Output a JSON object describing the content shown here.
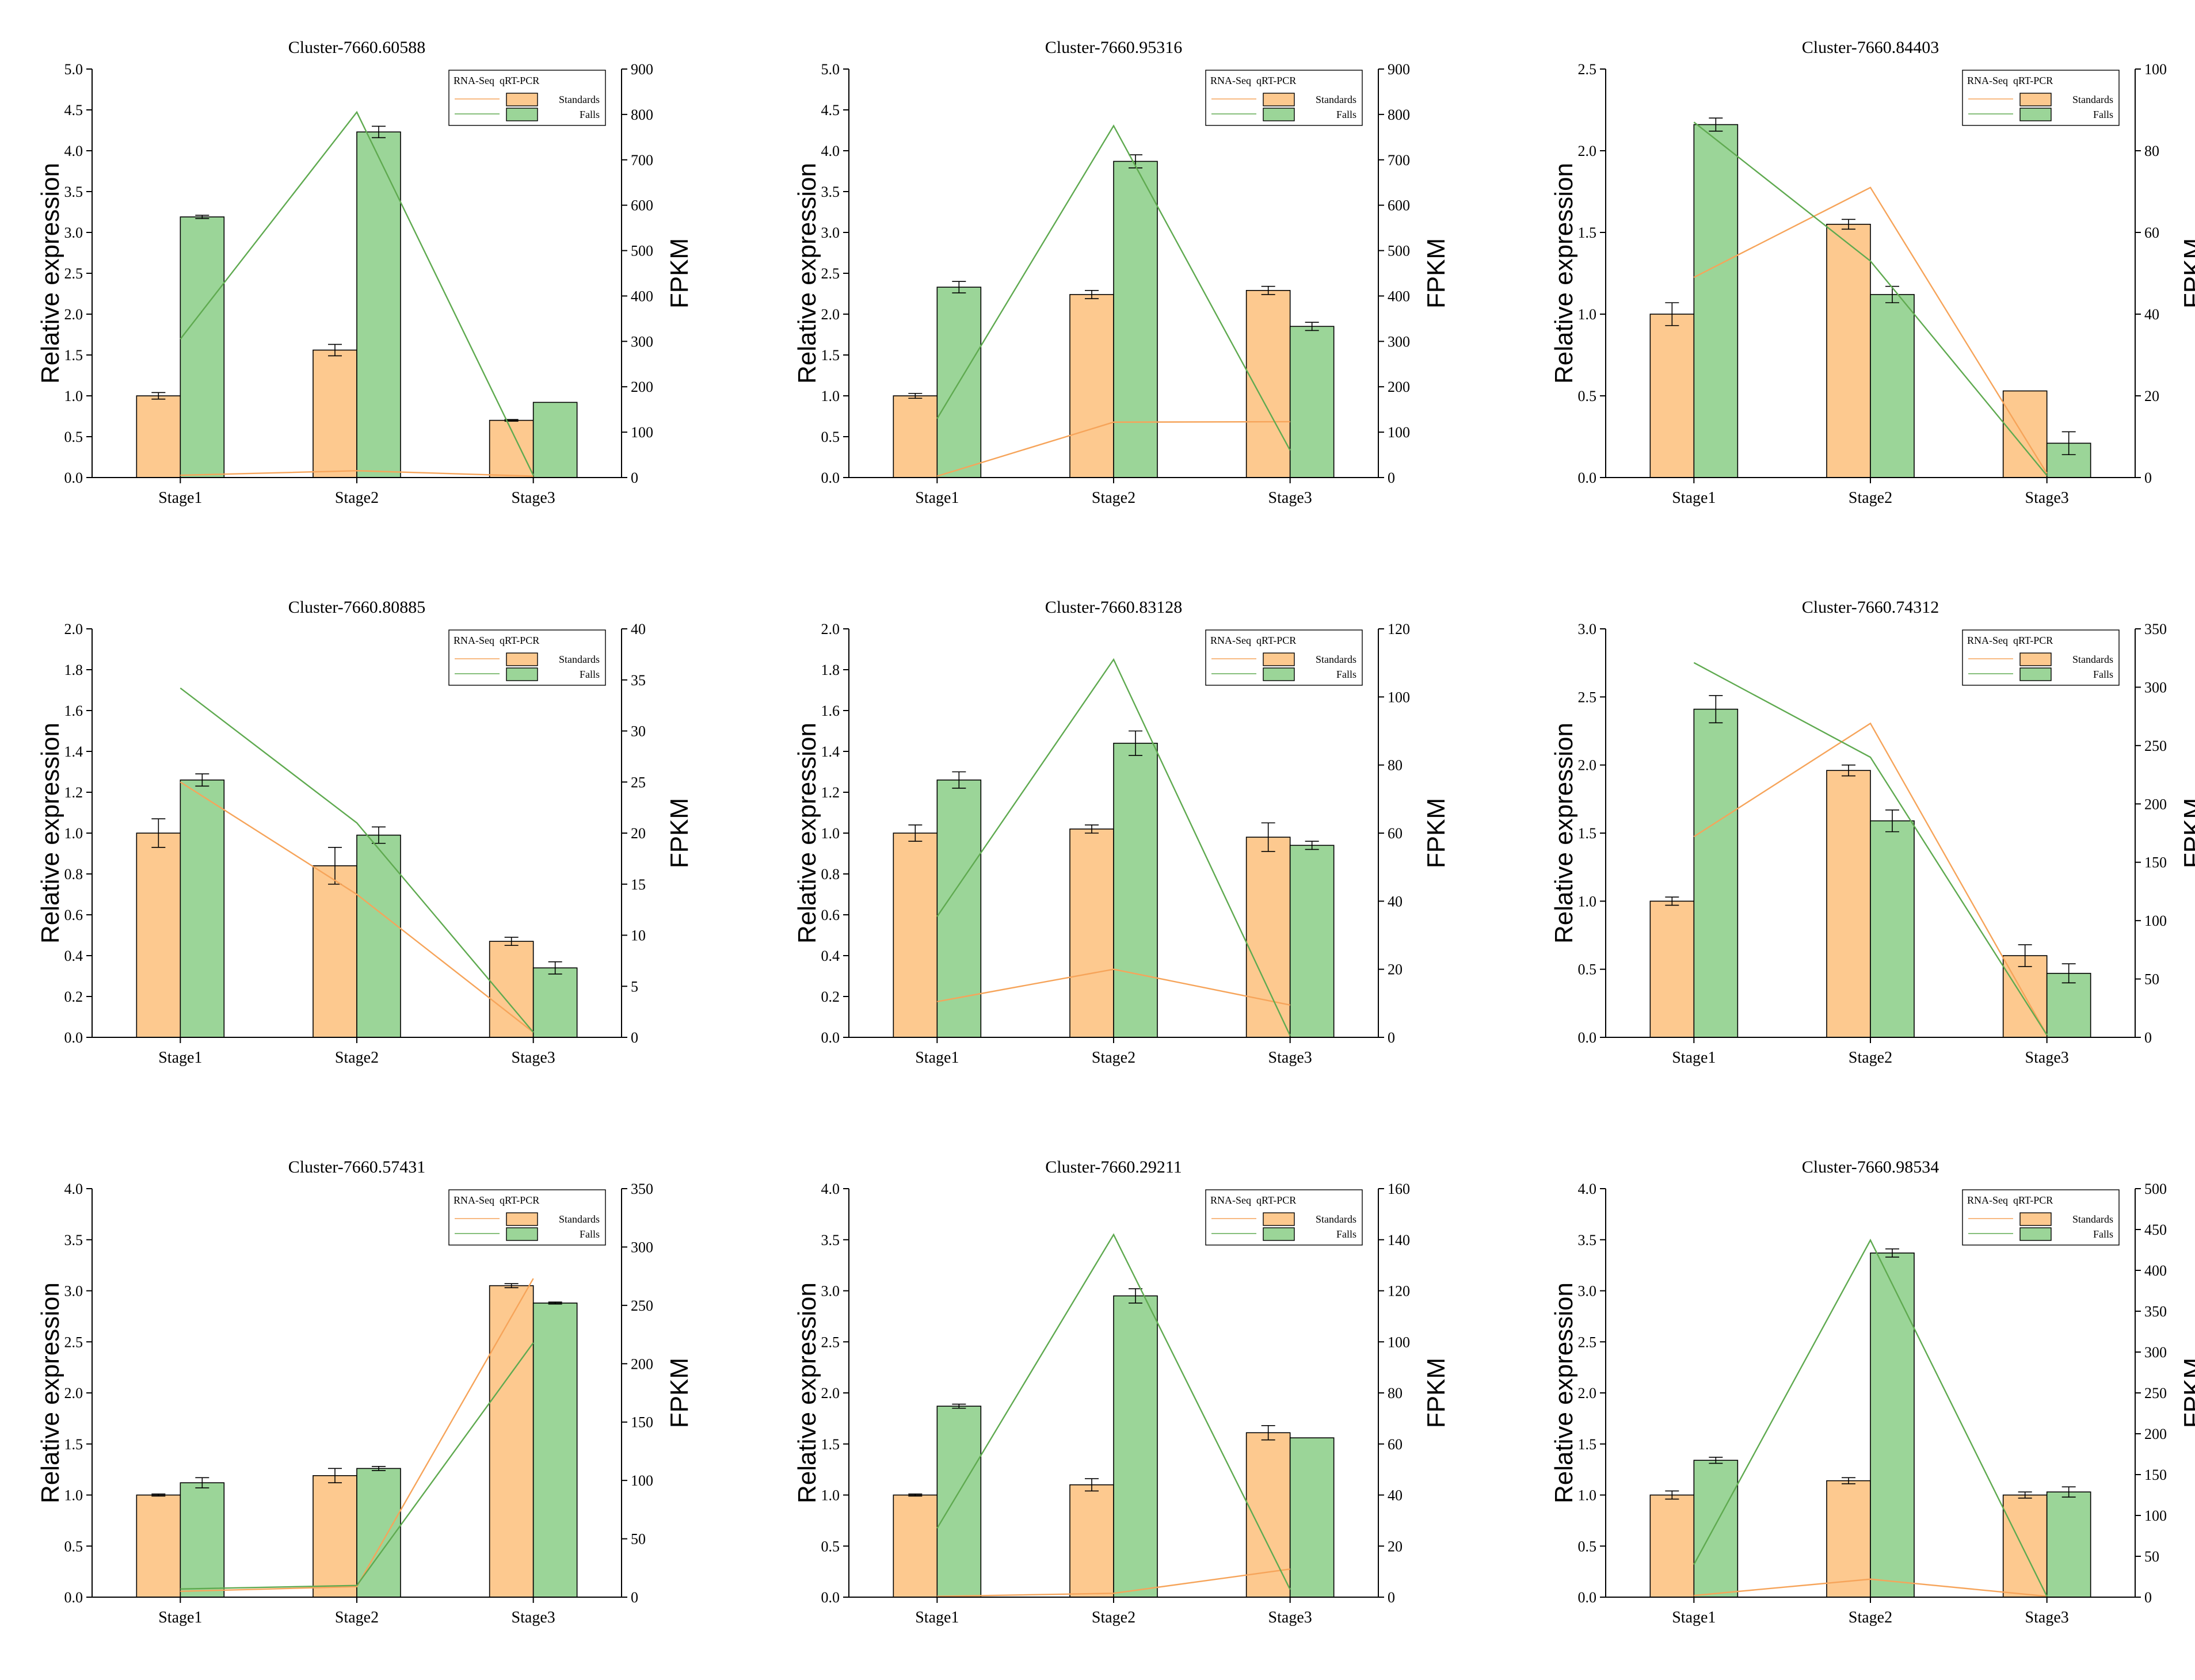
{
  "colors": {
    "standards_bar": "#FDC98F",
    "falls_bar": "#9BD598",
    "standards_line": "#F6A45A",
    "falls_line": "#5FAA50",
    "axis": "#000000"
  },
  "chart_data": [
    {
      "type": "bar",
      "title": "Cluster-7660.60588",
      "categories": [
        "Stage1",
        "Stage2",
        "Stage3"
      ],
      "ylabel": "Relative expression",
      "y2label": "FPKM",
      "ylim": [
        0,
        5
      ],
      "yticks": [
        "0.0",
        "0.5",
        "1.0",
        "1.5",
        "2.0",
        "2.5",
        "3.0",
        "3.5",
        "4.0",
        "4.5",
        "5.0"
      ],
      "y2lim": [
        0,
        900
      ],
      "y2ticks": [
        "0",
        "100",
        "200",
        "300",
        "400",
        "500",
        "600",
        "700",
        "800",
        "900"
      ],
      "legend": {
        "header_left": "RNA-Seq",
        "header_right": "qRT-PCR",
        "labels": [
          "Standards",
          "Falls"
        ],
        "position": "top-right"
      },
      "series": [
        {
          "name": "Standards",
          "kind": "bar",
          "values": [
            1.0,
            1.56,
            0.7
          ],
          "errors": [
            0.04,
            0.07,
            0.01
          ]
        },
        {
          "name": "Falls",
          "kind": "bar",
          "values": [
            3.19,
            4.23,
            0.92
          ],
          "errors": [
            0.02,
            0.07,
            0.0
          ]
        },
        {
          "name": "Standards",
          "kind": "line",
          "values": [
            5,
            15,
            3
          ]
        },
        {
          "name": "Falls",
          "kind": "line",
          "values": [
            305,
            805,
            5
          ]
        }
      ]
    },
    {
      "type": "bar",
      "title": "Cluster-7660.95316",
      "categories": [
        "Stage1",
        "Stage2",
        "Stage3"
      ],
      "ylabel": "Relative expression",
      "y2label": "FPKM",
      "ylim": [
        0,
        5
      ],
      "yticks": [
        "0.0",
        "0.5",
        "1.0",
        "1.5",
        "2.0",
        "2.5",
        "3.0",
        "3.5",
        "4.0",
        "4.5",
        "5.0"
      ],
      "y2lim": [
        0,
        900
      ],
      "y2ticks": [
        "0",
        "100",
        "200",
        "300",
        "400",
        "500",
        "600",
        "700",
        "800",
        "900"
      ],
      "legend": {
        "header_left": "RNA-Seq",
        "header_right": "qRT-PCR",
        "labels": [
          "Standards",
          "Falls"
        ],
        "position": "top-right"
      },
      "series": [
        {
          "name": "Standards",
          "kind": "bar",
          "values": [
            1.0,
            2.24,
            2.29
          ],
          "errors": [
            0.03,
            0.05,
            0.05
          ]
        },
        {
          "name": "Falls",
          "kind": "bar",
          "values": [
            2.33,
            3.87,
            1.85
          ],
          "errors": [
            0.07,
            0.08,
            0.05
          ]
        },
        {
          "name": "Standards",
          "kind": "line",
          "values": [
            3,
            122,
            123
          ]
        },
        {
          "name": "Falls",
          "kind": "line",
          "values": [
            130,
            775,
            60
          ]
        }
      ]
    },
    {
      "type": "bar",
      "title": "Cluster-7660.84403",
      "categories": [
        "Stage1",
        "Stage2",
        "Stage3"
      ],
      "ylabel": "Relative expression",
      "y2label": "FPKM",
      "ylim": [
        0,
        2.5
      ],
      "yticks": [
        "0.0",
        "0.5",
        "1.0",
        "1.5",
        "2.0",
        "2.5"
      ],
      "y2lim": [
        0,
        100
      ],
      "y2ticks": [
        "0",
        "20",
        "40",
        "60",
        "80",
        "100"
      ],
      "legend": {
        "header_left": "RNA-Seq",
        "header_right": "qRT-PCR",
        "labels": [
          "Standards",
          "Falls"
        ],
        "position": "top-right"
      },
      "series": [
        {
          "name": "Standards",
          "kind": "bar",
          "values": [
            1.0,
            1.55,
            0.53
          ],
          "errors": [
            0.07,
            0.03,
            0.0
          ]
        },
        {
          "name": "Falls",
          "kind": "bar",
          "values": [
            2.16,
            1.12,
            0.21
          ],
          "errors": [
            0.04,
            0.05,
            0.07
          ]
        },
        {
          "name": "Standards",
          "kind": "line",
          "values": [
            49,
            71,
            1
          ]
        },
        {
          "name": "Falls",
          "kind": "line",
          "values": [
            87,
            53,
            0.5
          ]
        }
      ]
    },
    {
      "type": "bar",
      "title": "Cluster-7660.80885",
      "categories": [
        "Stage1",
        "Stage2",
        "Stage3"
      ],
      "ylabel": "Relative expression",
      "y2label": "FPKM",
      "ylim": [
        0,
        2
      ],
      "yticks": [
        "0.0",
        "0.2",
        "0.4",
        "0.6",
        "0.8",
        "1.0",
        "1.2",
        "1.4",
        "1.6",
        "1.8",
        "2.0"
      ],
      "y2lim": [
        0,
        40
      ],
      "y2ticks": [
        "0",
        "5",
        "10",
        "15",
        "20",
        "25",
        "30",
        "35",
        "40"
      ],
      "legend": {
        "header_left": "RNA-Seq",
        "header_right": "qRT-PCR",
        "labels": [
          "Standards",
          "Falls"
        ],
        "position": "top-right"
      },
      "series": [
        {
          "name": "Standards",
          "kind": "bar",
          "values": [
            1.0,
            0.84,
            0.47
          ],
          "errors": [
            0.07,
            0.09,
            0.02
          ]
        },
        {
          "name": "Falls",
          "kind": "bar",
          "values": [
            1.26,
            0.99,
            0.34
          ],
          "errors": [
            0.03,
            0.04,
            0.03
          ]
        },
        {
          "name": "Standards",
          "kind": "line",
          "values": [
            25,
            14,
            0.5
          ]
        },
        {
          "name": "Falls",
          "kind": "line",
          "values": [
            34.2,
            21,
            0.5
          ]
        }
      ]
    },
    {
      "type": "bar",
      "title": "Cluster-7660.83128",
      "categories": [
        "Stage1",
        "Stage2",
        "Stage3"
      ],
      "ylabel": "Relative expression",
      "y2label": "FPKM",
      "ylim": [
        0,
        2
      ],
      "yticks": [
        "0.0",
        "0.2",
        "0.4",
        "0.6",
        "0.8",
        "1.0",
        "1.2",
        "1.4",
        "1.6",
        "1.8",
        "2.0"
      ],
      "y2lim": [
        0,
        120
      ],
      "y2ticks": [
        "0",
        "20",
        "40",
        "60",
        "80",
        "100",
        "120"
      ],
      "legend": {
        "header_left": "RNA-Seq",
        "header_right": "qRT-PCR",
        "labels": [
          "Standards",
          "Falls"
        ],
        "position": "top-right"
      },
      "series": [
        {
          "name": "Standards",
          "kind": "bar",
          "values": [
            1.0,
            1.02,
            0.98
          ],
          "errors": [
            0.04,
            0.02,
            0.07
          ]
        },
        {
          "name": "Falls",
          "kind": "bar",
          "values": [
            1.26,
            1.44,
            0.94
          ],
          "errors": [
            0.04,
            0.06,
            0.02
          ]
        },
        {
          "name": "Standards",
          "kind": "line",
          "values": [
            10.5,
            20,
            9.5
          ]
        },
        {
          "name": "Falls",
          "kind": "line",
          "values": [
            35.5,
            111,
            0.5
          ]
        }
      ]
    },
    {
      "type": "bar",
      "title": "Cluster-7660.74312",
      "categories": [
        "Stage1",
        "Stage2",
        "Stage3"
      ],
      "ylabel": "Relative expression",
      "y2label": "FPKM",
      "ylim": [
        0,
        3
      ],
      "yticks": [
        "0.0",
        "0.5",
        "1.0",
        "1.5",
        "2.0",
        "2.5",
        "3.0"
      ],
      "y2lim": [
        0,
        350
      ],
      "y2ticks": [
        "0",
        "50",
        "100",
        "150",
        "200",
        "250",
        "300",
        "350"
      ],
      "legend": {
        "header_left": "RNA-Seq",
        "header_right": "qRT-PCR",
        "labels": [
          "Standards",
          "Falls"
        ],
        "position": "top-right"
      },
      "series": [
        {
          "name": "Standards",
          "kind": "bar",
          "values": [
            1.0,
            1.96,
            0.6
          ],
          "errors": [
            0.03,
            0.04,
            0.08
          ]
        },
        {
          "name": "Falls",
          "kind": "bar",
          "values": [
            2.41,
            1.59,
            0.47
          ],
          "errors": [
            0.1,
            0.08,
            0.07
          ]
        },
        {
          "name": "Standards",
          "kind": "line",
          "values": [
            172,
            269,
            2
          ]
        },
        {
          "name": "Falls",
          "kind": "line",
          "values": [
            321,
            240,
            2
          ]
        }
      ]
    },
    {
      "type": "bar",
      "title": "Cluster-7660.57431",
      "categories": [
        "Stage1",
        "Stage2",
        "Stage3"
      ],
      "ylabel": "Relative expression",
      "y2label": "FPKM",
      "ylim": [
        0,
        4
      ],
      "yticks": [
        "0.0",
        "0.5",
        "1.0",
        "1.5",
        "2.0",
        "2.5",
        "3.0",
        "3.5",
        "4.0"
      ],
      "y2lim": [
        0,
        350
      ],
      "y2ticks": [
        "0",
        "50",
        "100",
        "150",
        "200",
        "250",
        "300",
        "350"
      ],
      "legend": {
        "header_left": "RNA-Seq",
        "header_right": "qRT-PCR",
        "labels": [
          "Standards",
          "Falls"
        ],
        "position": "top-right"
      },
      "series": [
        {
          "name": "Standards",
          "kind": "bar",
          "values": [
            1.0,
            1.19,
            3.05
          ],
          "errors": [
            0.01,
            0.07,
            0.02
          ]
        },
        {
          "name": "Falls",
          "kind": "bar",
          "values": [
            1.12,
            1.26,
            2.88
          ],
          "errors": [
            0.05,
            0.02,
            0.01
          ]
        },
        {
          "name": "Standards",
          "kind": "line",
          "values": [
            5,
            9,
            273
          ]
        },
        {
          "name": "Falls",
          "kind": "line",
          "values": [
            7,
            10,
            218
          ]
        }
      ]
    },
    {
      "type": "bar",
      "title": "Cluster-7660.29211",
      "categories": [
        "Stage1",
        "Stage2",
        "Stage3"
      ],
      "ylabel": "Relative expression",
      "y2label": "FPKM",
      "ylim": [
        0,
        4
      ],
      "yticks": [
        "0.0",
        "0.5",
        "1.0",
        "1.5",
        "2.0",
        "2.5",
        "3.0",
        "3.5",
        "4.0"
      ],
      "y2lim": [
        0,
        160
      ],
      "y2ticks": [
        "0",
        "20",
        "40",
        "60",
        "80",
        "100",
        "120",
        "140",
        "160"
      ],
      "legend": {
        "header_left": "RNA-Seq",
        "header_right": "qRT-PCR",
        "labels": [
          "Standards",
          "Falls"
        ],
        "position": "top-right"
      },
      "series": [
        {
          "name": "Standards",
          "kind": "bar",
          "values": [
            1.0,
            1.1,
            1.61
          ],
          "errors": [
            0.01,
            0.06,
            0.07
          ]
        },
        {
          "name": "Falls",
          "kind": "bar",
          "values": [
            1.87,
            2.95,
            1.56
          ],
          "errors": [
            0.02,
            0.07,
            0.0
          ]
        },
        {
          "name": "Standards",
          "kind": "line",
          "values": [
            0.3,
            1.5,
            11
          ]
        },
        {
          "name": "Falls",
          "kind": "line",
          "values": [
            27,
            142,
            3
          ]
        }
      ]
    },
    {
      "type": "bar",
      "title": "Cluster-7660.98534",
      "categories": [
        "Stage1",
        "Stage2",
        "Stage3"
      ],
      "ylabel": "Relative expression",
      "y2label": "FPKM",
      "ylim": [
        0,
        4
      ],
      "yticks": [
        "0.0",
        "0.5",
        "1.0",
        "1.5",
        "2.0",
        "2.5",
        "3.0",
        "3.5",
        "4.0"
      ],
      "y2lim": [
        0,
        500
      ],
      "y2ticks": [
        "0",
        "50",
        "100",
        "150",
        "200",
        "250",
        "300",
        "350",
        "400",
        "450",
        "500"
      ],
      "legend": {
        "header_left": "RNA-Seq",
        "header_right": "qRT-PCR",
        "labels": [
          "Standards",
          "Falls"
        ],
        "position": "top-right"
      },
      "series": [
        {
          "name": "Standards",
          "kind": "bar",
          "values": [
            1.0,
            1.14,
            1.0
          ],
          "errors": [
            0.04,
            0.03,
            0.03
          ]
        },
        {
          "name": "Falls",
          "kind": "bar",
          "values": [
            1.34,
            3.37,
            1.03
          ],
          "errors": [
            0.03,
            0.04,
            0.05
          ]
        },
        {
          "name": "Standards",
          "kind": "line",
          "values": [
            2,
            22,
            1
          ]
        },
        {
          "name": "Falls",
          "kind": "line",
          "values": [
            40,
            437,
            1
          ]
        }
      ]
    }
  ]
}
